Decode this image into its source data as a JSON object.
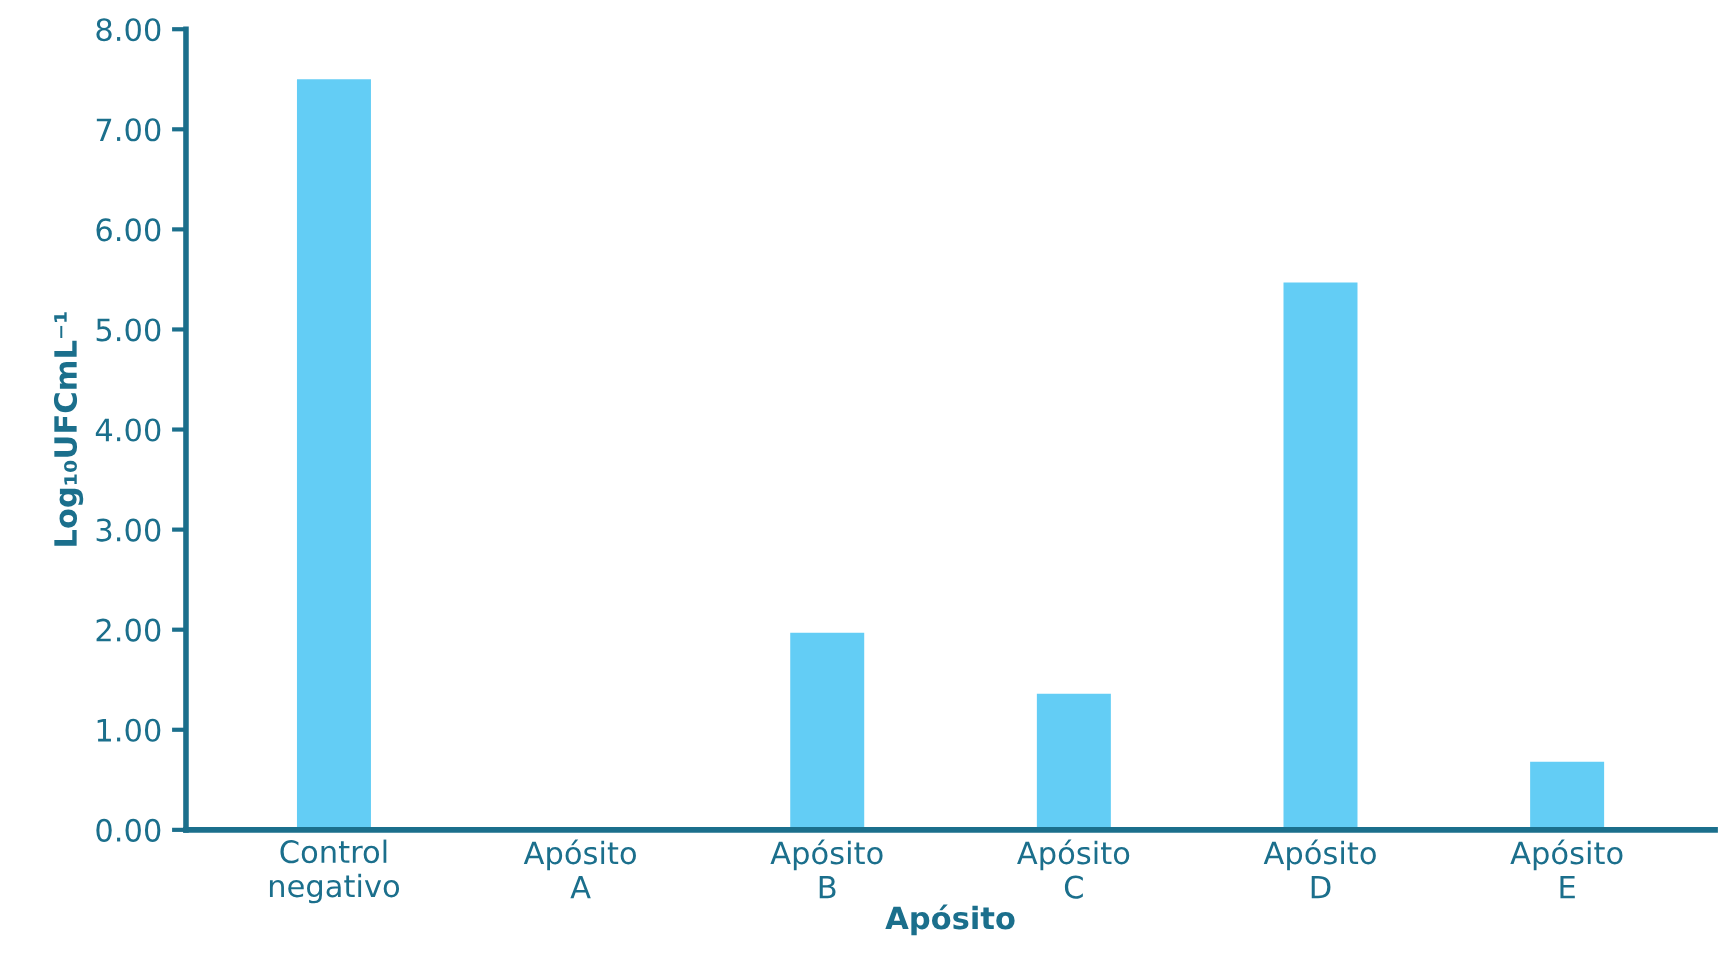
{
  "chart_data": {
    "type": "bar",
    "xlabel": "Apósito",
    "ylabel": "Log₁₀UFCmL⁻¹",
    "categories": [
      "Control\nnegativo",
      "Apósito\nA",
      "Apósito\nB",
      "Apósito\nC",
      "Apósito\nD",
      "Apósito\nE"
    ],
    "values": [
      7.5,
      0,
      1.97,
      1.36,
      5.47,
      0.68
    ],
    "color": "#63cdf5",
    "ylim": [
      0,
      8
    ],
    "yticks": [
      {
        "value": 0,
        "label": "0.00"
      },
      {
        "value": 1,
        "label": "1.00"
      },
      {
        "value": 2,
        "label": "2.00"
      },
      {
        "value": 3,
        "label": "3.00"
      },
      {
        "value": 4,
        "label": "4.00"
      },
      {
        "value": 5,
        "label": "5.00"
      },
      {
        "value": 6,
        "label": "6.00"
      },
      {
        "value": 7,
        "label": "7.00"
      },
      {
        "value": 8,
        "label": "8.00"
      }
    ],
    "grid": false,
    "legend": false
  }
}
